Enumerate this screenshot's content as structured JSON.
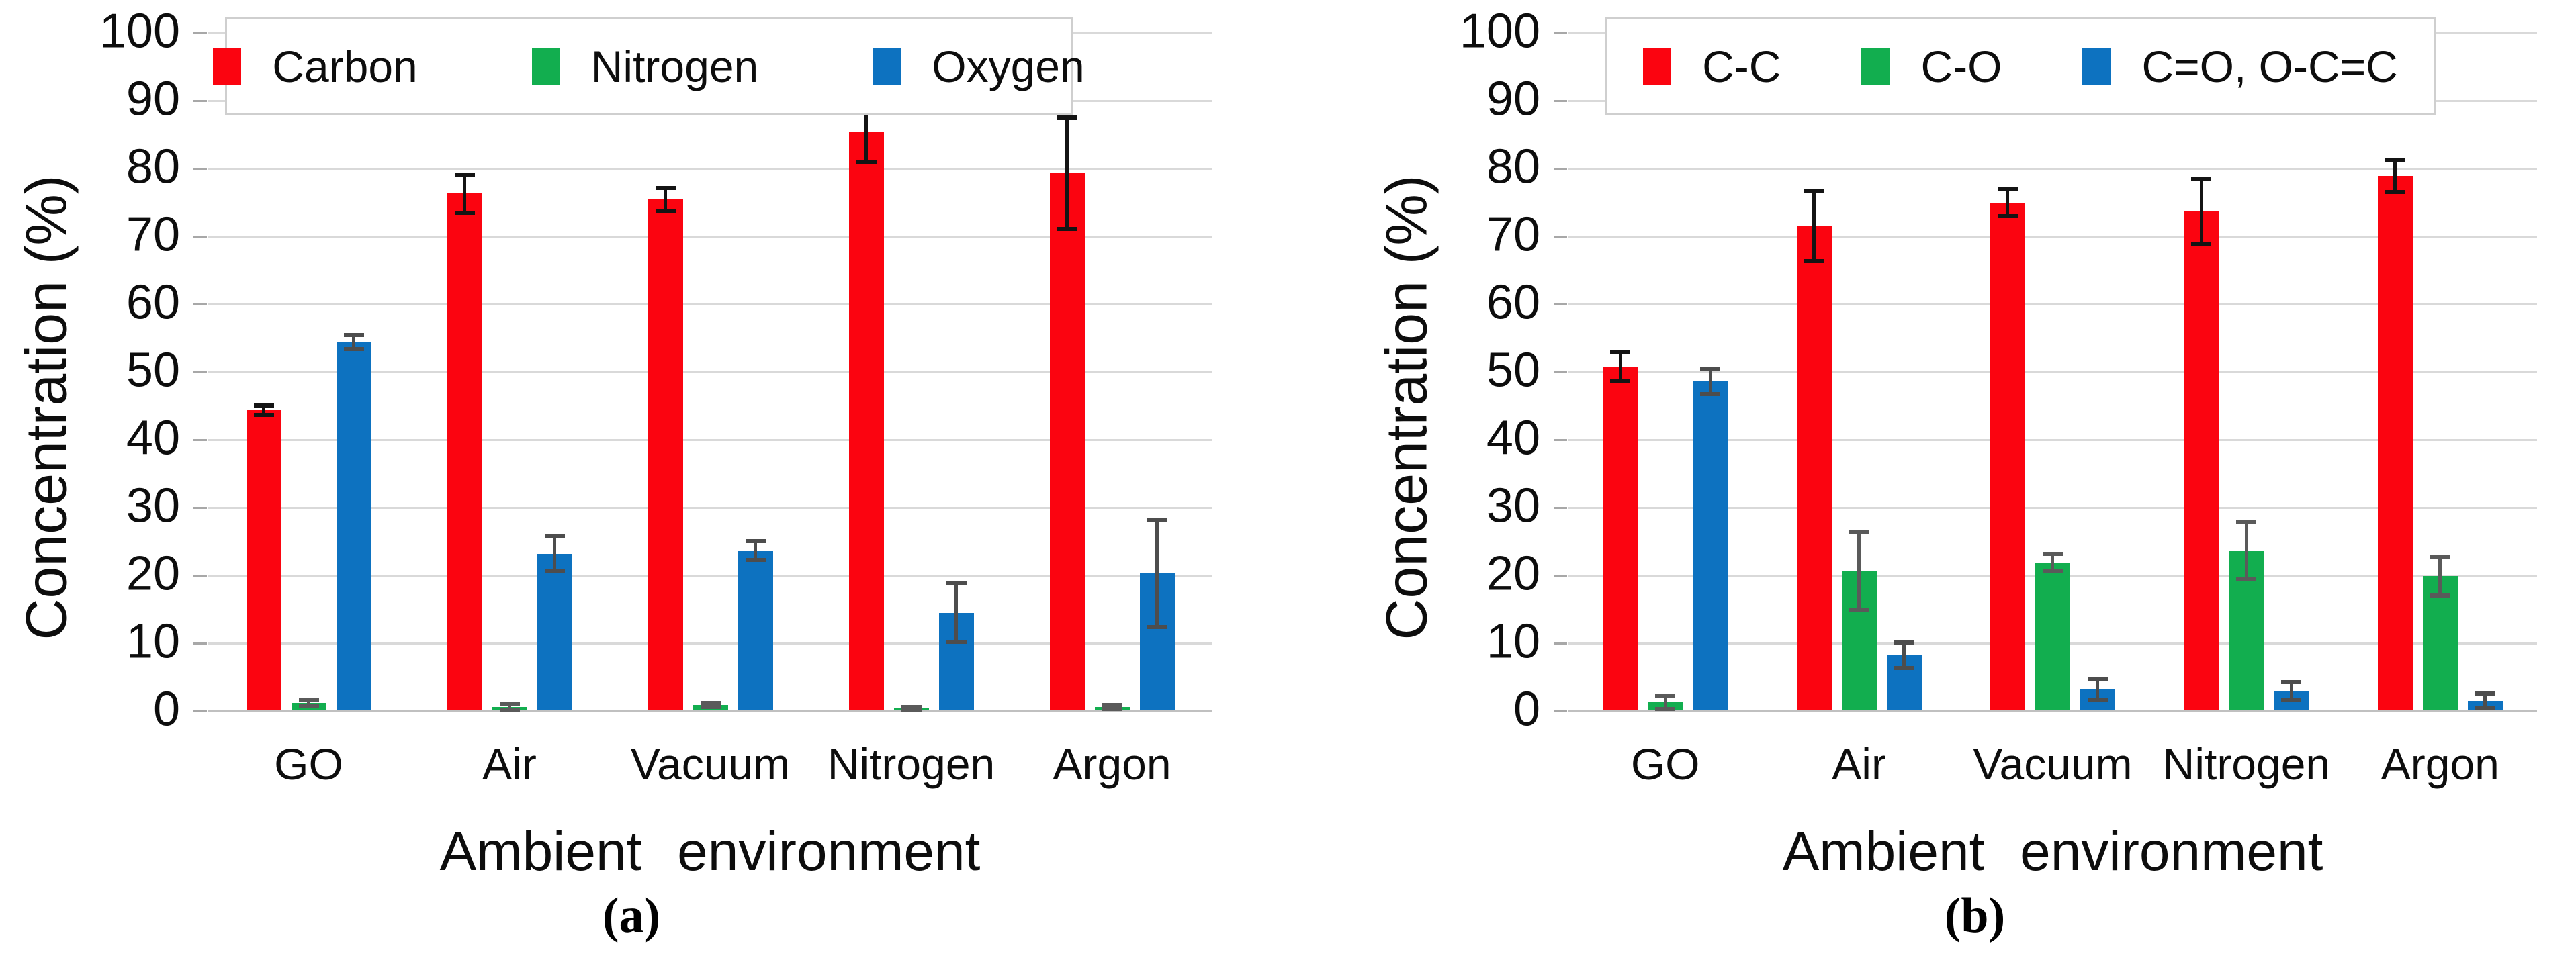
{
  "figure": {
    "panels": [
      {
        "caption": "(a)"
      },
      {
        "caption": "(b)"
      }
    ]
  },
  "chart_data": [
    {
      "type": "bar",
      "caption": "(a)",
      "xlabel": "Ambient environment",
      "ylabel": "Concentration (%)",
      "ylim": [
        0,
        100
      ],
      "ytick_step": 10,
      "grid": true,
      "legend_position": "top",
      "error_bars": true,
      "categories": [
        "GO",
        "Air",
        "Vacuum",
        "Nitrogen",
        "Argon"
      ],
      "series": [
        {
          "name": "Carbon",
          "color": "#fb0410",
          "error_color": "#141414",
          "values": [
            44.3,
            76.2,
            75.3,
            85.2,
            79.2
          ],
          "errors": [
            0.7,
            2.8,
            1.7,
            4.3,
            8.2
          ]
        },
        {
          "name": "Nitrogen",
          "color": "#12ae4f",
          "error_color": "#5a5a5a",
          "values": [
            1.1,
            0.5,
            0.8,
            0.3,
            0.5
          ],
          "errors": [
            0.4,
            0.4,
            0.3,
            0.2,
            0.3
          ]
        },
        {
          "name": "Oxygen",
          "color": "#0d72c0",
          "error_color": "#4d4d4d",
          "values": [
            54.3,
            23.1,
            23.6,
            14.4,
            20.2
          ],
          "errors": [
            1.0,
            2.6,
            1.4,
            4.3,
            7.9
          ]
        }
      ]
    },
    {
      "type": "bar",
      "caption": "(b)",
      "xlabel": "Ambient environment",
      "ylabel": "Concentration (%)",
      "ylim": [
        0,
        100
      ],
      "ytick_step": 10,
      "grid": true,
      "legend_position": "top",
      "error_bars": true,
      "categories": [
        "GO",
        "Air",
        "Vacuum",
        "Nitrogen",
        "Argon"
      ],
      "series": [
        {
          "name": "C-C",
          "color": "#fb0410",
          "error_color": "#141414",
          "values": [
            50.7,
            71.4,
            74.9,
            73.6,
            78.8
          ],
          "errors": [
            2.2,
            5.2,
            2.0,
            4.8,
            2.4
          ]
        },
        {
          "name": "C-O",
          "color": "#12ae4f",
          "error_color": "#5a5a5a",
          "values": [
            1.2,
            20.6,
            21.8,
            23.5,
            19.8
          ],
          "errors": [
            1.0,
            5.7,
            1.3,
            4.2,
            2.9
          ]
        },
        {
          "name": "C=O, O-C=C",
          "color": "#0d72c0",
          "error_color": "#4d4d4d",
          "values": [
            48.5,
            8.1,
            3.1,
            2.9,
            1.4
          ],
          "errors": [
            1.9,
            1.9,
            1.5,
            1.3,
            1.1
          ]
        }
      ]
    }
  ]
}
